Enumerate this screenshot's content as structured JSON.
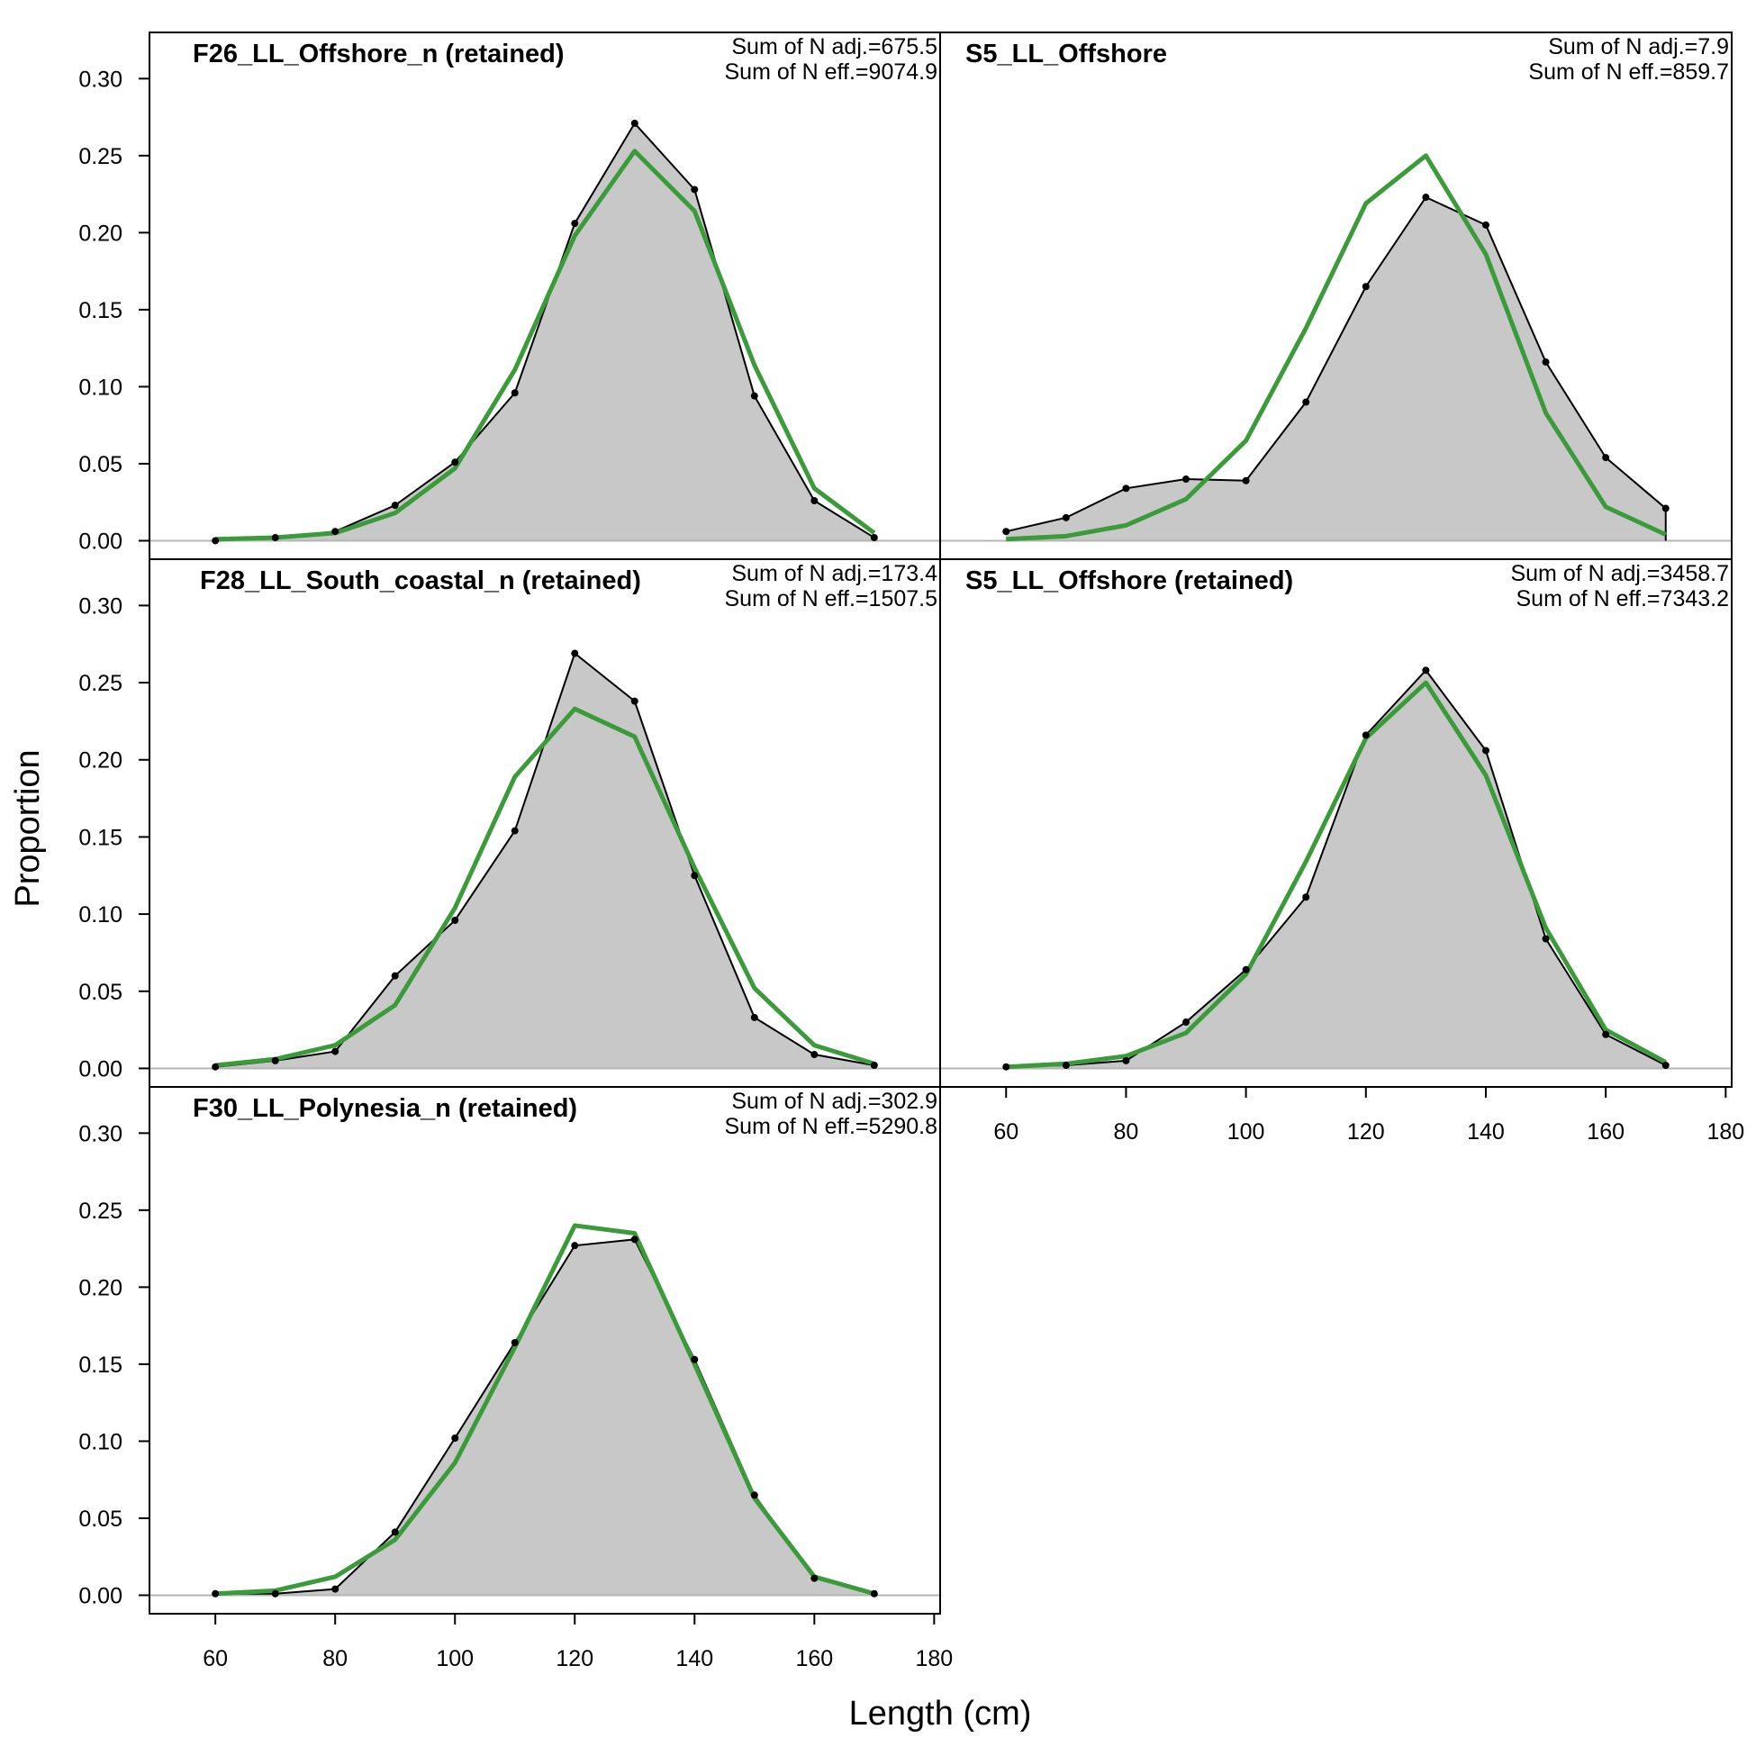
{
  "chart_data": [
    {
      "type": "area",
      "title": "F26_LL_Offshore_n (retained)",
      "annotations": [
        "Sum of N adj.=675.5",
        "Sum of N eff.=9074.9"
      ],
      "x": [
        60,
        70,
        80,
        90,
        100,
        110,
        120,
        130,
        140,
        150,
        160,
        170
      ],
      "series": [
        {
          "kind": "observed",
          "color": "#000000",
          "fill": "#c8c8c8",
          "values": [
            0.0,
            0.002,
            0.006,
            0.023,
            0.051,
            0.096,
            0.206,
            0.271,
            0.228,
            0.094,
            0.026,
            0.002
          ]
        },
        {
          "kind": "expected",
          "color": "#3b9b3b",
          "values": [
            0.001,
            0.002,
            0.005,
            0.018,
            0.047,
            0.111,
            0.198,
            0.253,
            0.214,
            0.114,
            0.034,
            0.005
          ]
        }
      ]
    },
    {
      "type": "area",
      "title": "S5_LL_Offshore",
      "annotations": [
        "Sum of N adj.=7.9",
        "Sum of N eff.=859.7"
      ],
      "x": [
        60,
        70,
        80,
        90,
        100,
        110,
        120,
        130,
        140,
        150,
        160,
        170
      ],
      "series": [
        {
          "kind": "observed",
          "color": "#000000",
          "fill": "#c8c8c8",
          "values": [
            0.006,
            0.015,
            0.034,
            0.04,
            0.039,
            0.09,
            0.165,
            0.223,
            0.205,
            0.116,
            0.054,
            0.021
          ]
        },
        {
          "kind": "expected",
          "color": "#3b9b3b",
          "values": [
            0.001,
            0.003,
            0.01,
            0.027,
            0.065,
            0.138,
            0.219,
            0.25,
            0.186,
            0.083,
            0.022,
            0.004
          ]
        }
      ]
    },
    {
      "type": "area",
      "title": "F28_LL_South_coastal_n (retained)",
      "annotations": [
        "Sum of N adj.=173.4",
        "Sum of N eff.=1507.5"
      ],
      "x": [
        60,
        70,
        80,
        90,
        100,
        110,
        120,
        130,
        140,
        150,
        160,
        170
      ],
      "series": [
        {
          "kind": "observed",
          "color": "#000000",
          "fill": "#c8c8c8",
          "values": [
            0.001,
            0.005,
            0.011,
            0.06,
            0.096,
            0.154,
            0.269,
            0.238,
            0.125,
            0.033,
            0.009,
            0.002
          ]
        },
        {
          "kind": "expected",
          "color": "#3b9b3b",
          "values": [
            0.002,
            0.006,
            0.015,
            0.041,
            0.104,
            0.189,
            0.233,
            0.215,
            0.13,
            0.052,
            0.015,
            0.003
          ]
        }
      ]
    },
    {
      "type": "area",
      "title": "S5_LL_Offshore (retained)",
      "annotations": [
        "Sum of N adj.=3458.7",
        "Sum of N eff.=7343.2"
      ],
      "x": [
        60,
        70,
        80,
        90,
        100,
        110,
        120,
        130,
        140,
        150,
        160,
        170
      ],
      "series": [
        {
          "kind": "observed",
          "color": "#000000",
          "fill": "#c8c8c8",
          "values": [
            0.001,
            0.002,
            0.005,
            0.03,
            0.064,
            0.111,
            0.216,
            0.258,
            0.206,
            0.084,
            0.022,
            0.002
          ]
        },
        {
          "kind": "expected",
          "color": "#3b9b3b",
          "values": [
            0.001,
            0.003,
            0.008,
            0.023,
            0.061,
            0.134,
            0.214,
            0.25,
            0.19,
            0.091,
            0.025,
            0.004
          ]
        }
      ]
    },
    {
      "type": "area",
      "title": "F30_LL_Polynesia_n (retained)",
      "annotations": [
        "Sum of N adj.=302.9",
        "Sum of N eff.=5290.8"
      ],
      "x": [
        60,
        70,
        80,
        90,
        100,
        110,
        120,
        130,
        140,
        150,
        160,
        170
      ],
      "series": [
        {
          "kind": "observed",
          "color": "#000000",
          "fill": "#c8c8c8",
          "values": [
            0.001,
            0.001,
            0.004,
            0.041,
            0.102,
            0.164,
            0.227,
            0.231,
            0.153,
            0.065,
            0.011,
            0.001
          ]
        },
        {
          "kind": "expected",
          "color": "#3b9b3b",
          "values": [
            0.001,
            0.003,
            0.012,
            0.036,
            0.086,
            0.161,
            0.24,
            0.235,
            0.15,
            0.063,
            0.012,
            0.001
          ]
        }
      ]
    }
  ],
  "axes": {
    "xlabel": "Length (cm)",
    "ylabel": "Proportion",
    "xlim": [
      49,
      181
    ],
    "ylim": [
      -0.012,
      0.33
    ],
    "xticks": [
      "60",
      "80",
      "100",
      "120",
      "140",
      "160",
      "180"
    ],
    "yticks": [
      "0.00",
      "0.05",
      "0.10",
      "0.15",
      "0.20",
      "0.25",
      "0.30"
    ]
  },
  "colors": {
    "observed_line": "#000000",
    "observed_fill": "#c8c8c8",
    "expected_line": "#3b9b3b",
    "zero_line": "#b4b4b4"
  }
}
